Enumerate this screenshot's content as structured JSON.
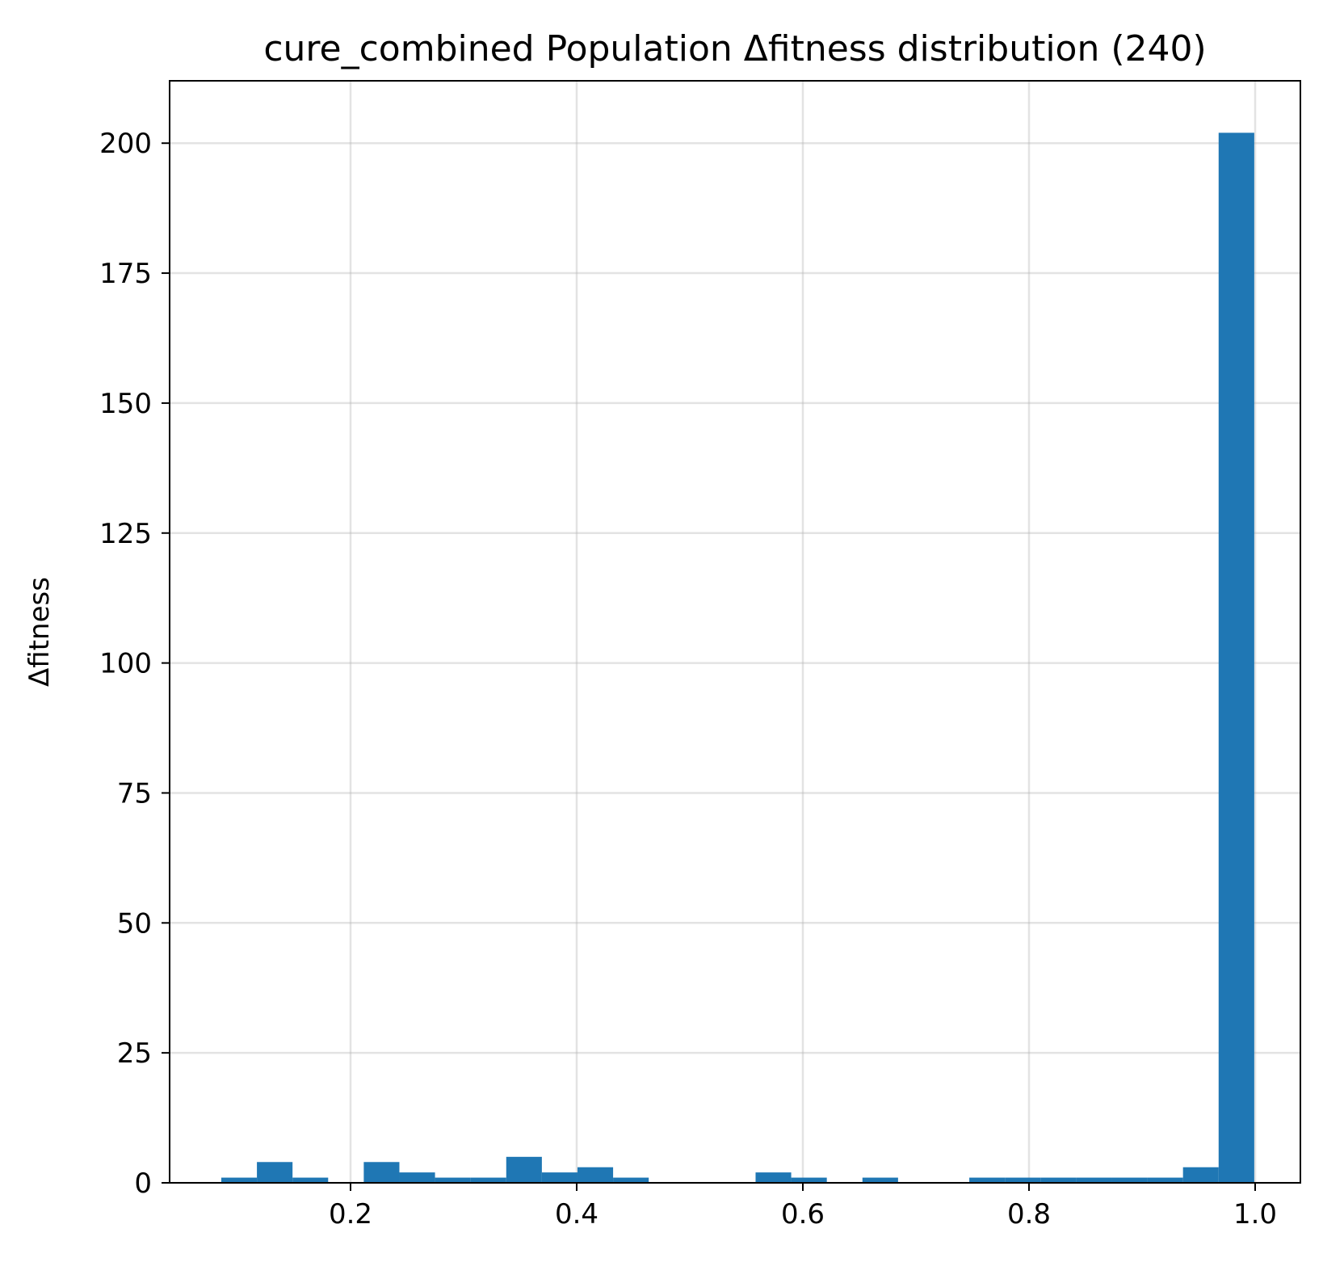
{
  "chart_data": {
    "type": "bar",
    "title": "cure_combined Population Δfitness distribution (240)",
    "xlabel": "",
    "ylabel": "Δfitness",
    "xlim": [
      0.04,
      1.04
    ],
    "ylim": [
      0,
      212
    ],
    "xticks": [
      0.2,
      0.4,
      0.6,
      0.8,
      1.0
    ],
    "xtick_labels": [
      "0.2",
      "0.4",
      "0.6",
      "0.8",
      "1.0"
    ],
    "yticks": [
      0,
      25,
      50,
      75,
      100,
      125,
      150,
      175,
      200
    ],
    "ytick_labels": [
      "0",
      "25",
      "50",
      "75",
      "100",
      "125",
      "150",
      "175",
      "200"
    ],
    "grid": true,
    "legend": "none",
    "bar_color": "#1f77b4",
    "bins": [
      {
        "x0": 0.0857,
        "x1": 0.1172,
        "count": 1
      },
      {
        "x0": 0.1172,
        "x1": 0.1487,
        "count": 4
      },
      {
        "x0": 0.1487,
        "x1": 0.1802,
        "count": 1
      },
      {
        "x0": 0.1802,
        "x1": 0.2117,
        "count": 0
      },
      {
        "x0": 0.2117,
        "x1": 0.2432,
        "count": 4
      },
      {
        "x0": 0.2432,
        "x1": 0.2747,
        "count": 2
      },
      {
        "x0": 0.2747,
        "x1": 0.3062,
        "count": 1
      },
      {
        "x0": 0.3062,
        "x1": 0.3377,
        "count": 1
      },
      {
        "x0": 0.3377,
        "x1": 0.3692,
        "count": 5
      },
      {
        "x0": 0.3692,
        "x1": 0.4007,
        "count": 2
      },
      {
        "x0": 0.4007,
        "x1": 0.4322,
        "count": 3
      },
      {
        "x0": 0.4322,
        "x1": 0.4637,
        "count": 1
      },
      {
        "x0": 0.4637,
        "x1": 0.4952,
        "count": 0
      },
      {
        "x0": 0.4952,
        "x1": 0.5267,
        "count": 0
      },
      {
        "x0": 0.5267,
        "x1": 0.5582,
        "count": 0
      },
      {
        "x0": 0.5582,
        "x1": 0.5897,
        "count": 2
      },
      {
        "x0": 0.5897,
        "x1": 0.6212,
        "count": 1
      },
      {
        "x0": 0.6212,
        "x1": 0.6527,
        "count": 0
      },
      {
        "x0": 0.6527,
        "x1": 0.6842,
        "count": 1
      },
      {
        "x0": 0.6842,
        "x1": 0.7157,
        "count": 0
      },
      {
        "x0": 0.7157,
        "x1": 0.7472,
        "count": 0
      },
      {
        "x0": 0.7472,
        "x1": 0.7787,
        "count": 1
      },
      {
        "x0": 0.7787,
        "x1": 0.8102,
        "count": 1
      },
      {
        "x0": 0.8102,
        "x1": 0.8417,
        "count": 1
      },
      {
        "x0": 0.8417,
        "x1": 0.8732,
        "count": 1
      },
      {
        "x0": 0.8732,
        "x1": 0.9047,
        "count": 1
      },
      {
        "x0": 0.9047,
        "x1": 0.9362,
        "count": 1
      },
      {
        "x0": 0.9362,
        "x1": 0.9677,
        "count": 3
      },
      {
        "x0": 0.9677,
        "x1": 0.9992,
        "count": 202
      }
    ]
  }
}
